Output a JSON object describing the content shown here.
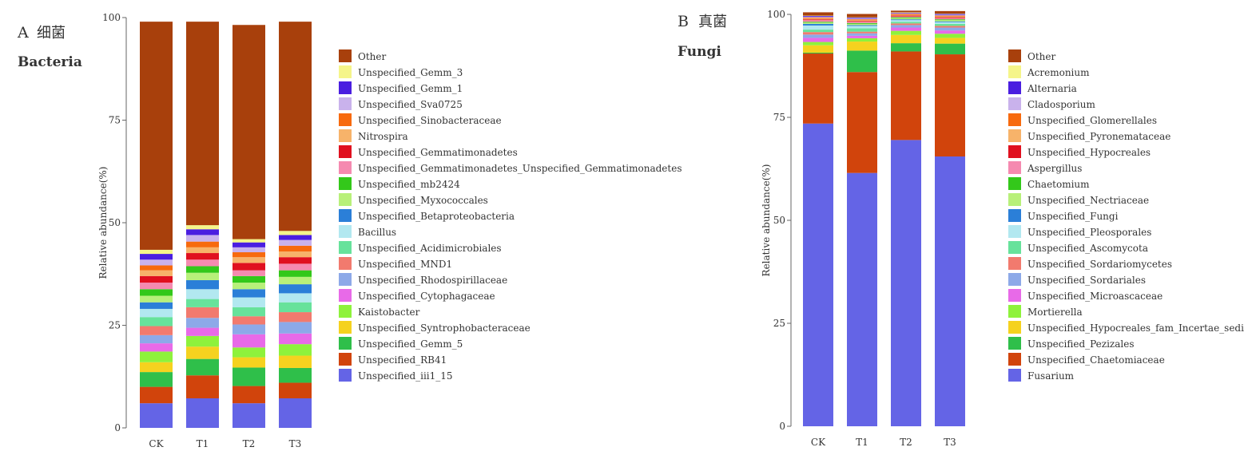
{
  "figure": {
    "panels": [
      {
        "letter": "A",
        "cn": "细菌",
        "en": "Bacteria"
      },
      {
        "letter": "B",
        "cn": "真菌",
        "en": "Fungi"
      }
    ]
  },
  "chart_data": [
    {
      "type": "bar",
      "stacked": true,
      "title": "",
      "xlabel": "",
      "ylabel": "Relative abundance(%)",
      "ylim": [
        0,
        100
      ],
      "yticks": [
        0,
        25,
        50,
        75,
        100
      ],
      "yticklabels": [
        "0",
        "25",
        "50",
        "75",
        "100"
      ],
      "categories": [
        "CK",
        "T1",
        "T2",
        "T3"
      ],
      "legend_position": "right",
      "series": [
        {
          "name": "Unspecified_iii1_15",
          "color": "#6464e6",
          "values": [
            6.0,
            7.2,
            6.0,
            7.2
          ]
        },
        {
          "name": "Unspecified_RB41",
          "color": "#d1440c",
          "values": [
            4.0,
            5.6,
            4.2,
            3.8
          ]
        },
        {
          "name": "Unspecified_Gemm_5",
          "color": "#2fbf4a",
          "values": [
            3.6,
            4.0,
            4.5,
            3.6
          ]
        },
        {
          "name": "Unspecified_Syntrophobacteraceae",
          "color": "#f5d21f",
          "values": [
            2.4,
            3.0,
            2.5,
            3.0
          ]
        },
        {
          "name": "Kaistobacter",
          "color": "#8ef23c",
          "values": [
            2.6,
            2.6,
            2.4,
            2.8
          ]
        },
        {
          "name": "Unspecified_Cytophagaceae",
          "color": "#e86ae8",
          "values": [
            2.0,
            2.0,
            3.2,
            2.6
          ]
        },
        {
          "name": "Unspecified_Rhodospirillaceae",
          "color": "#8da9e8",
          "values": [
            2.0,
            2.4,
            2.4,
            2.8
          ]
        },
        {
          "name": "Unspecified_MND1",
          "color": "#f27a6e",
          "values": [
            2.2,
            2.6,
            2.0,
            2.4
          ]
        },
        {
          "name": "Unspecified_Acidimicrobiales",
          "color": "#67e29b",
          "values": [
            2.2,
            2.0,
            2.2,
            2.4
          ]
        },
        {
          "name": "Bacillus",
          "color": "#b2e8f0",
          "values": [
            2.0,
            2.4,
            2.4,
            2.2
          ]
        },
        {
          "name": "Unspecified_Betaproteobacteria",
          "color": "#2b7fd8",
          "values": [
            1.6,
            2.2,
            2.0,
            2.2
          ]
        },
        {
          "name": "Unspecified_Myxococcales",
          "color": "#b8f07a",
          "values": [
            1.6,
            1.8,
            1.6,
            1.8
          ]
        },
        {
          "name": "Unspecified_mb2424",
          "color": "#33c81a",
          "values": [
            1.6,
            1.6,
            1.6,
            1.6
          ]
        },
        {
          "name": "Unspecified_Gemmatimonadetes_Unspecified_Gemmatimonadetes",
          "color": "#f58ab0",
          "values": [
            1.6,
            1.6,
            1.4,
            1.6
          ]
        },
        {
          "name": "Unspecified_Gemmatimonadetes",
          "color": "#e0101f",
          "values": [
            1.6,
            1.6,
            1.8,
            1.6
          ]
        },
        {
          "name": "Nitrospira",
          "color": "#f7b36a",
          "values": [
            1.4,
            1.4,
            1.4,
            1.4
          ]
        },
        {
          "name": "Unspecified_Sinobacteraceae",
          "color": "#f76a0e",
          "values": [
            1.2,
            1.4,
            1.2,
            1.4
          ]
        },
        {
          "name": "Unspecified_Sva0725",
          "color": "#c9b2ec",
          "values": [
            1.4,
            1.6,
            1.2,
            1.4
          ]
        },
        {
          "name": "Unspecified_Gemm_1",
          "color": "#4a1ee0",
          "values": [
            1.4,
            1.4,
            1.2,
            1.2
          ]
        },
        {
          "name": "Unspecified_Gemm_3",
          "color": "#f5f58a",
          "values": [
            1.0,
            1.0,
            0.8,
            1.0
          ]
        },
        {
          "name": "Other",
          "color": "#a8400c",
          "values": [
            55.6,
            49.6,
            52.2,
            51.0
          ]
        }
      ]
    },
    {
      "type": "bar",
      "stacked": true,
      "title": "",
      "xlabel": "",
      "ylabel": "Relative abundance(%)",
      "ylim": [
        0,
        100
      ],
      "yticks": [
        0,
        25,
        50,
        75,
        100
      ],
      "yticklabels": [
        "0",
        "25",
        "50",
        "75",
        "100"
      ],
      "categories": [
        "CK",
        "T1",
        "T2",
        "T3"
      ],
      "legend_position": "right",
      "series": [
        {
          "name": "Fusarium",
          "color": "#6464e6",
          "values": [
            73.5,
            61.5,
            69.5,
            65.5
          ]
        },
        {
          "name": "Unspecified_Chaetomiaceae",
          "color": "#d1440c",
          "values": [
            17.0,
            24.5,
            21.5,
            24.8
          ]
        },
        {
          "name": "Unspecified_Pezizales",
          "color": "#2fbf4a",
          "values": [
            0.2,
            5.2,
            2.0,
            2.6
          ]
        },
        {
          "name": "Unspecified_Hypocreales_fam_Incertae_sedis",
          "color": "#f5d21f",
          "values": [
            1.8,
            2.2,
            2.0,
            1.4
          ]
        },
        {
          "name": "Mortierella",
          "color": "#8ef23c",
          "values": [
            0.8,
            0.8,
            1.0,
            1.0
          ]
        },
        {
          "name": "Unspecified_Microascaceae",
          "color": "#e86ae8",
          "values": [
            1.0,
            0.6,
            0.8,
            0.8
          ]
        },
        {
          "name": "Unspecified_Sordariales",
          "color": "#8da9e8",
          "values": [
            0.8,
            0.6,
            0.6,
            0.7
          ]
        },
        {
          "name": "Unspecified_Sordariomycetes",
          "color": "#f27a6e",
          "values": [
            0.6,
            0.4,
            0.4,
            0.4
          ]
        },
        {
          "name": "Unspecified_Ascomycota",
          "color": "#67e29b",
          "values": [
            0.6,
            0.8,
            0.4,
            0.5
          ]
        },
        {
          "name": "Unspecified_Pleosporales",
          "color": "#b2e8f0",
          "values": [
            1.0,
            0.6,
            0.4,
            0.4
          ]
        },
        {
          "name": "Unspecified_Fungi",
          "color": "#2b7fd8",
          "values": [
            0.4,
            0.2,
            0.2,
            0.2
          ]
        },
        {
          "name": "Unspecified_Nectriaceae",
          "color": "#b8f07a",
          "values": [
            0.3,
            0.3,
            0.3,
            0.3
          ]
        },
        {
          "name": "Chaetomium",
          "color": "#33c81a",
          "values": [
            0.2,
            0.2,
            0.2,
            0.2
          ]
        },
        {
          "name": "Aspergillus",
          "color": "#f58ab0",
          "values": [
            0.4,
            0.3,
            0.2,
            0.3
          ]
        },
        {
          "name": "Unspecified_Hypocreales",
          "color": "#e0101f",
          "values": [
            0.2,
            0.2,
            0.2,
            0.2
          ]
        },
        {
          "name": "Unspecified_Pyronemataceae",
          "color": "#f7b36a",
          "values": [
            0.2,
            0.2,
            0.2,
            0.2
          ]
        },
        {
          "name": "Unspecified_Glomerellales",
          "color": "#f76a0e",
          "values": [
            0.2,
            0.2,
            0.2,
            0.2
          ]
        },
        {
          "name": "Cladosporium",
          "color": "#c9b2ec",
          "values": [
            0.2,
            0.2,
            0.2,
            0.2
          ]
        },
        {
          "name": "Alternaria",
          "color": "#4a1ee0",
          "values": [
            0.2,
            0.2,
            0.1,
            0.2
          ]
        },
        {
          "name": "Acremonium",
          "color": "#f5f58a",
          "values": [
            0.1,
            0.1,
            0.1,
            0.1
          ]
        },
        {
          "name": "Other",
          "color": "#a8400c",
          "values": [
            0.8,
            0.8,
            0.4,
            0.6
          ]
        }
      ]
    }
  ]
}
